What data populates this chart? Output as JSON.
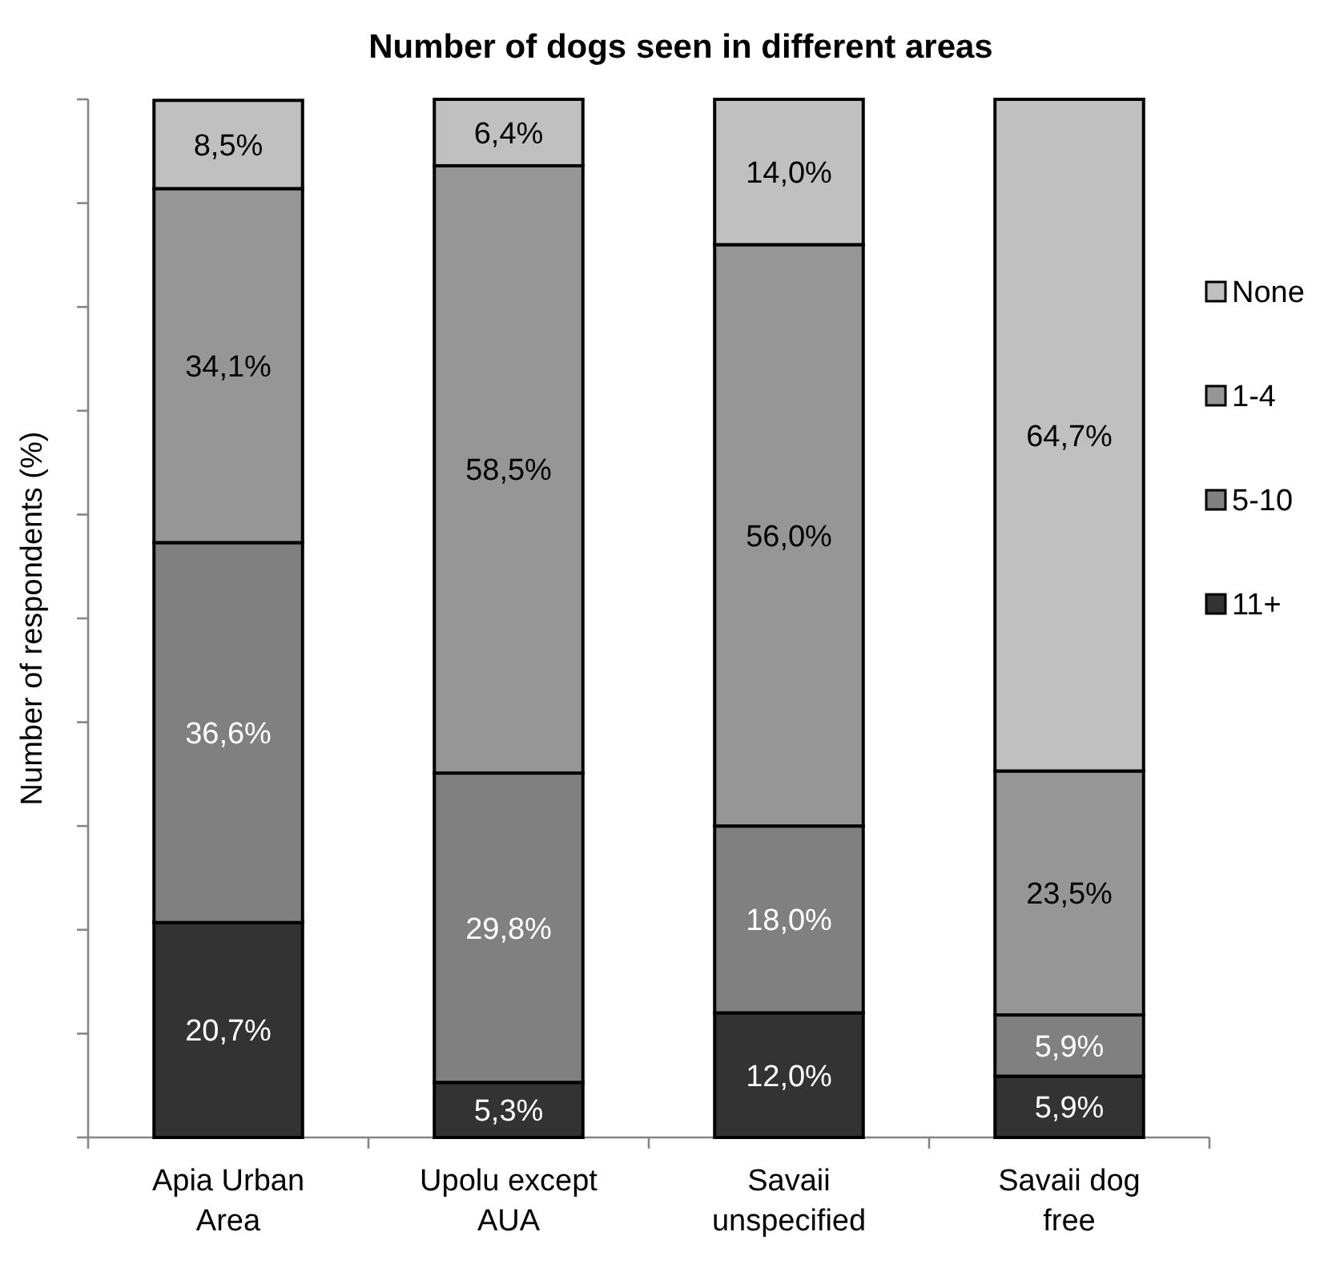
{
  "chart_data": {
    "type": "bar",
    "stacked": true,
    "title": "Number of dogs seen in different areas",
    "ylabel": "Number of respondents (%)",
    "categories": [
      "Apia Urban Area",
      "Upolu except AUA",
      "Savaii unspecified",
      "Savaii dog free"
    ],
    "series": [
      {
        "name": "11+",
        "color": "#333333",
        "values": [
          20.7,
          5.3,
          12.0,
          5.9
        ],
        "value_labels": [
          "20,7%",
          "5,3%",
          "12,0%",
          "5,9%"
        ]
      },
      {
        "name": "5-10",
        "color": "#808080",
        "values": [
          36.6,
          29.8,
          18.0,
          5.9
        ],
        "value_labels": [
          "36,6%",
          "29,8%",
          "18,0%",
          "5,9%"
        ]
      },
      {
        "name": "1-4",
        "color": "#969696",
        "values": [
          34.1,
          58.5,
          56.0,
          23.5
        ],
        "value_labels": [
          "34,1%",
          "58,5%",
          "56,0%",
          "23,5%"
        ]
      },
      {
        "name": "None",
        "color": "#c0c0c0",
        "values": [
          8.5,
          6.4,
          14.0,
          64.7
        ],
        "value_labels": [
          "8,5%",
          "6,4%",
          "14,0%",
          "64,7%"
        ]
      }
    ],
    "ylim": [
      0,
      100
    ],
    "yticks": [
      {
        "value": 0,
        "label": null
      },
      {
        "value": 10,
        "label": null
      },
      {
        "value": 20,
        "label": null
      },
      {
        "value": 30,
        "label": null
      },
      {
        "value": 40,
        "label": null
      },
      {
        "value": 50,
        "label": null
      },
      {
        "value": 60,
        "label": null
      },
      {
        "value": 70,
        "label": null
      },
      {
        "value": 80,
        "label": null
      },
      {
        "value": 90,
        "label": null
      },
      {
        "value": 100,
        "label": null
      }
    ],
    "tick_labels": "x",
    "legend": "right",
    "grid": false
  }
}
